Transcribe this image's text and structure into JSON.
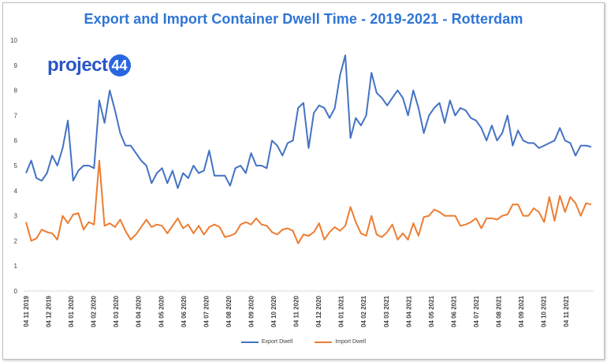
{
  "logo": {
    "text": "project",
    "badge": "44"
  },
  "colors": {
    "export": "#4472c4",
    "import": "#ed7d31",
    "title": "#2e75d6"
  },
  "chart_data": {
    "type": "line",
    "title": "Export and Import Container Dwell Time - 2019-2021 - Rotterdam",
    "xlabel": "",
    "ylabel": "",
    "ylim": [
      0,
      10
    ],
    "yticks": [
      0,
      1,
      2,
      3,
      4,
      5,
      6,
      7,
      8,
      9,
      10
    ],
    "grid": false,
    "legend_position": "bottom",
    "x_tick_labels": [
      "04 11 2019",
      "04 12 2019",
      "04 01 2020",
      "04 02 2020",
      "04 03 2020",
      "04 04 2020",
      "04 05 2020",
      "04 06 2020",
      "04 07 2020",
      "04 08 2020",
      "04 09 2020",
      "04 10 2020",
      "04 11 2020",
      "04 12 2020",
      "04 01 2021",
      "04 02 2021",
      "04 03 2021",
      "04 04 2021",
      "04 05 2021",
      "04 06 2021",
      "04 07 2021",
      "04 08 2021",
      "04 09 2021",
      "04 10 2021",
      "04 11 2021"
    ],
    "series": [
      {
        "name": "Export Dwell",
        "color": "#4472c4",
        "values": [
          4.7,
          5.2,
          4.5,
          4.4,
          4.7,
          5.4,
          5.0,
          5.7,
          6.8,
          4.4,
          4.8,
          5.0,
          5.0,
          4.9,
          7.6,
          6.7,
          8.0,
          7.2,
          6.3,
          5.8,
          5.8,
          5.5,
          5.2,
          5.0,
          4.3,
          4.7,
          4.9,
          4.3,
          4.8,
          4.1,
          4.7,
          4.5,
          5.0,
          4.7,
          4.8,
          5.6,
          4.6,
          4.6,
          4.6,
          4.2,
          4.9,
          5.0,
          4.7,
          5.5,
          5.0,
          5.0,
          4.9,
          6.0,
          5.8,
          5.4,
          5.9,
          6.0,
          7.3,
          7.5,
          5.7,
          7.1,
          7.4,
          7.3,
          6.9,
          7.3,
          8.6,
          9.4,
          6.1,
          6.9,
          6.6,
          7.0,
          8.7,
          7.9,
          7.7,
          7.4,
          7.7,
          8.0,
          7.7,
          7.0,
          8.0,
          7.3,
          6.3,
          7.0,
          7.3,
          7.5,
          6.7,
          7.6,
          7.0,
          7.3,
          7.2,
          6.9,
          6.8,
          6.5,
          6.0,
          6.6,
          6.0,
          6.3,
          7.0,
          5.8,
          6.4,
          6.0,
          5.9,
          5.9,
          5.7,
          5.8,
          5.9,
          6.0,
          6.5,
          6.0,
          5.9,
          5.4,
          5.8,
          5.8,
          5.75
        ]
      },
      {
        "name": "Import Dwell",
        "color": "#ed7d31",
        "values": [
          2.75,
          2.0,
          2.1,
          2.45,
          2.35,
          2.3,
          2.05,
          3.0,
          2.7,
          3.05,
          3.1,
          2.45,
          2.75,
          2.65,
          5.2,
          2.6,
          2.7,
          2.55,
          2.85,
          2.4,
          2.05,
          2.25,
          2.55,
          2.85,
          2.55,
          2.65,
          2.6,
          2.3,
          2.6,
          2.9,
          2.5,
          2.65,
          2.3,
          2.6,
          2.25,
          2.55,
          2.65,
          2.55,
          2.15,
          2.2,
          2.3,
          2.65,
          2.75,
          2.65,
          2.9,
          2.65,
          2.6,
          2.35,
          2.25,
          2.45,
          2.5,
          2.4,
          1.9,
          2.25,
          2.2,
          2.35,
          2.7,
          2.05,
          2.35,
          2.55,
          2.4,
          2.6,
          3.35,
          2.75,
          2.3,
          2.2,
          3.0,
          2.25,
          2.15,
          2.35,
          2.65,
          2.05,
          2.3,
          2.05,
          2.7,
          2.2,
          2.95,
          3.0,
          3.25,
          3.15,
          3.0,
          3.0,
          3.0,
          2.6,
          2.65,
          2.75,
          2.9,
          2.5,
          2.9,
          2.9,
          2.85,
          3.0,
          3.05,
          3.45,
          3.45,
          3.0,
          3.0,
          3.3,
          3.15,
          2.75,
          3.75,
          2.8,
          3.8,
          3.15,
          3.75,
          3.5,
          3.0,
          3.5,
          3.45
        ]
      }
    ]
  }
}
